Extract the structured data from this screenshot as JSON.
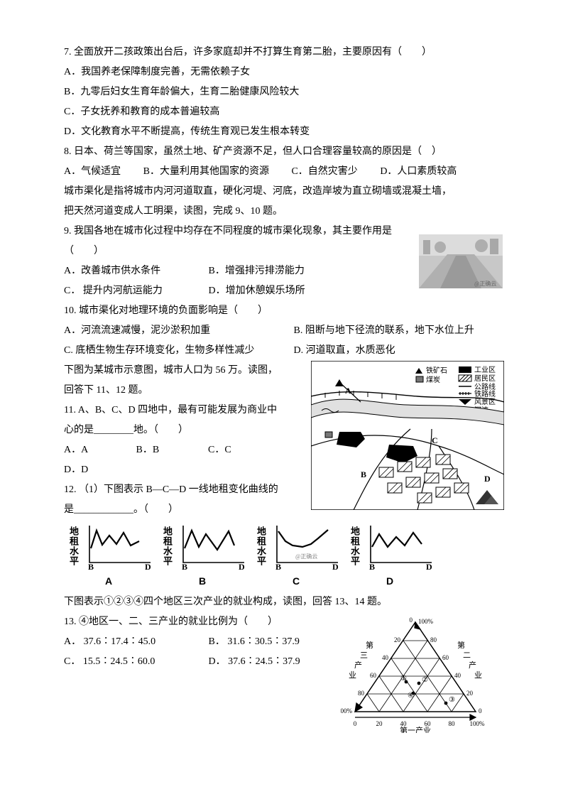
{
  "q7": {
    "stem": "7. 全面放开二孩政策出台后，许多家庭却并不打算生育第二胎，主要原因有（　　）",
    "a": "A．我国养老保障制度完善，无需依赖子女",
    "b": "B．九零后妇女生育年龄偏大，生育二胎健康风险较大",
    "c": "C．子女抚养和教育的成本普遍较高",
    "d": "D．文化教育水平不断提高，传统生育观已发生根本转变"
  },
  "q8": {
    "stem": "8. 日本、荷兰等国家，虽然土地、矿产资源不足，但人口合理容量较高的原因是（　）",
    "a": "A．气候适宜",
    "b": "B．大量利用其他国家的资源",
    "c": "C．自然灾害少",
    "d": "D．人口素质较高"
  },
  "passage9_10": {
    "l1": "城市渠化是指将城市内河河道取直，硬化河堤、河底，改造岸坡为直立砌墙或混凝土墙，",
    "l2": "把天然河道变成人工明渠，读图，完成 9、10 题。"
  },
  "q9": {
    "stem": "9. 我国各地在城市化过程中均存在不同程度的城市渠化现象，其主要作用是（　　）",
    "a": "A．改善城市供水条件",
    "b": "B．增强排污排涝能力",
    "c": "C．  提升内河航运能力",
    "d": "D．增加休憩娱乐场所"
  },
  "q10": {
    "stem": "10. 城市渠化对地理环境的负面影响是（　　）",
    "a": "A．河流流速减慢，泥沙淤积加重",
    "b": "B. 阻断与地下径流的联系，地下水位上升",
    "c": "C. 底栖生物生存环境变化，生物多样性减少",
    "d": "D. 河道取直，水质恶化"
  },
  "passage11_12": {
    "l1": "下图为某城市示意图，城市人口为 56 万。读图，",
    "l2": "回答下 11、12 题。"
  },
  "q11": {
    "stem1": "11.  A、B、C、D 四地中，最有可能发展为商业中",
    "stem2": "心的是________地。（　　）",
    "a": "A．A",
    "b": "B．B",
    "c": "C．C",
    "d": "D．D"
  },
  "q12": {
    "stem1": "12.  （1）下图表示 B—C—D 一线地租变化曲线的",
    "stem2": "是____________。（　　）"
  },
  "charts12": {
    "vlabel": "地租水平",
    "xL": "B",
    "xR": "D",
    "labels": [
      "A",
      "B",
      "C",
      "D"
    ],
    "wm": "@正确云",
    "stroke": "#000000",
    "axis_w": 1.6,
    "line_w": 2.2,
    "chartA": [
      [
        12,
        20
      ],
      [
        20,
        45
      ],
      [
        28,
        25
      ],
      [
        38,
        38
      ],
      [
        48,
        26
      ],
      [
        58,
        42
      ],
      [
        68,
        24
      ],
      [
        80,
        30
      ]
    ],
    "chartB": [
      [
        12,
        20
      ],
      [
        22,
        45
      ],
      [
        32,
        22
      ],
      [
        42,
        40
      ],
      [
        58,
        18
      ],
      [
        74,
        44
      ],
      [
        82,
        24
      ]
    ],
    "chartC": [
      [
        12,
        44
      ],
      [
        22,
        30
      ],
      [
        32,
        24
      ],
      [
        46,
        22
      ],
      [
        58,
        26
      ],
      [
        68,
        34
      ],
      [
        82,
        46
      ]
    ],
    "chartD": [
      [
        12,
        22
      ],
      [
        22,
        40
      ],
      [
        34,
        22
      ],
      [
        46,
        36
      ],
      [
        58,
        24
      ],
      [
        70,
        42
      ],
      [
        82,
        26
      ]
    ]
  },
  "passage13_14": "下图表示①②③④四个地区三次产业的就业构成，读图，回答 13、14 题。",
  "q13": {
    "stem": "13. ④地区一、二、三产业的就业比例为（　　）",
    "a": "A．  37.6∶17.4∶45.0",
    "b": "B．  31.6∶30.5∶37.9",
    "c": "C．  15.5∶24.5∶60.0",
    "d": "D．  37.6∶24.5∶37.9"
  },
  "map": {
    "legend": {
      "iron": "铁矿石",
      "coal": "煤炭",
      "ind": "工业区",
      "res": "居民区",
      "road": "公路线",
      "rail": "铁路线",
      "scenic": "风景区",
      "river": "河流"
    },
    "A": "A",
    "B": "B",
    "C": "C",
    "D": "D"
  },
  "triangle": {
    "axis1": "第一产业",
    "axis2_a": "第",
    "axis2_b": "二",
    "axis2_c": "产",
    "axis2_d": "业",
    "axis3_a": "第",
    "axis3_b": "三",
    "axis3_c": "产",
    "axis3_d": "业",
    "ticks": [
      "0",
      "20",
      "40",
      "60",
      "80",
      "100%"
    ],
    "pts": [
      "①",
      "②",
      "③",
      "④"
    ]
  },
  "canal_image_watermark": "@正确云"
}
